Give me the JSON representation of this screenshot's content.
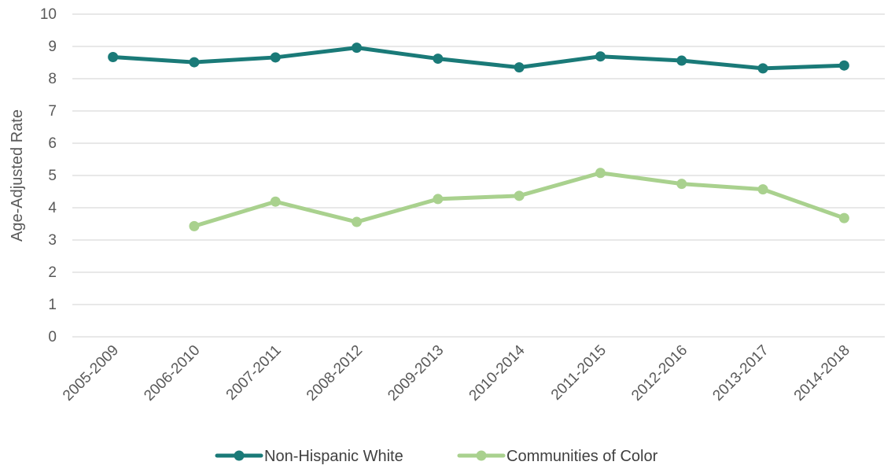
{
  "chart_data": {
    "type": "line",
    "categories": [
      "2005-2009",
      "2006-2010",
      "2007-2011",
      "2008-2012",
      "2009-2013",
      "2010-2014",
      "2011-2015",
      "2012-2016",
      "2013-2017",
      "2014-2018"
    ],
    "series": [
      {
        "name": "Non-Hispanic White",
        "color": "#1a7a78",
        "values": [
          8.67,
          8.51,
          8.66,
          8.96,
          8.62,
          8.35,
          8.69,
          8.56,
          8.32,
          8.41
        ]
      },
      {
        "name": "Communities of Color",
        "color": "#a9d18e",
        "values": [
          null,
          3.43,
          4.19,
          3.56,
          4.27,
          4.37,
          5.08,
          4.74,
          4.57,
          3.68
        ]
      }
    ],
    "title": "",
    "xlabel": "",
    "ylabel": "Age-Adjusted Rate",
    "ylim": [
      0,
      10
    ],
    "yticks": [
      "0",
      "1",
      "2",
      "3",
      "4",
      "5",
      "6",
      "7",
      "8",
      "9",
      "10"
    ],
    "grid": true,
    "legend_position": "bottom"
  }
}
